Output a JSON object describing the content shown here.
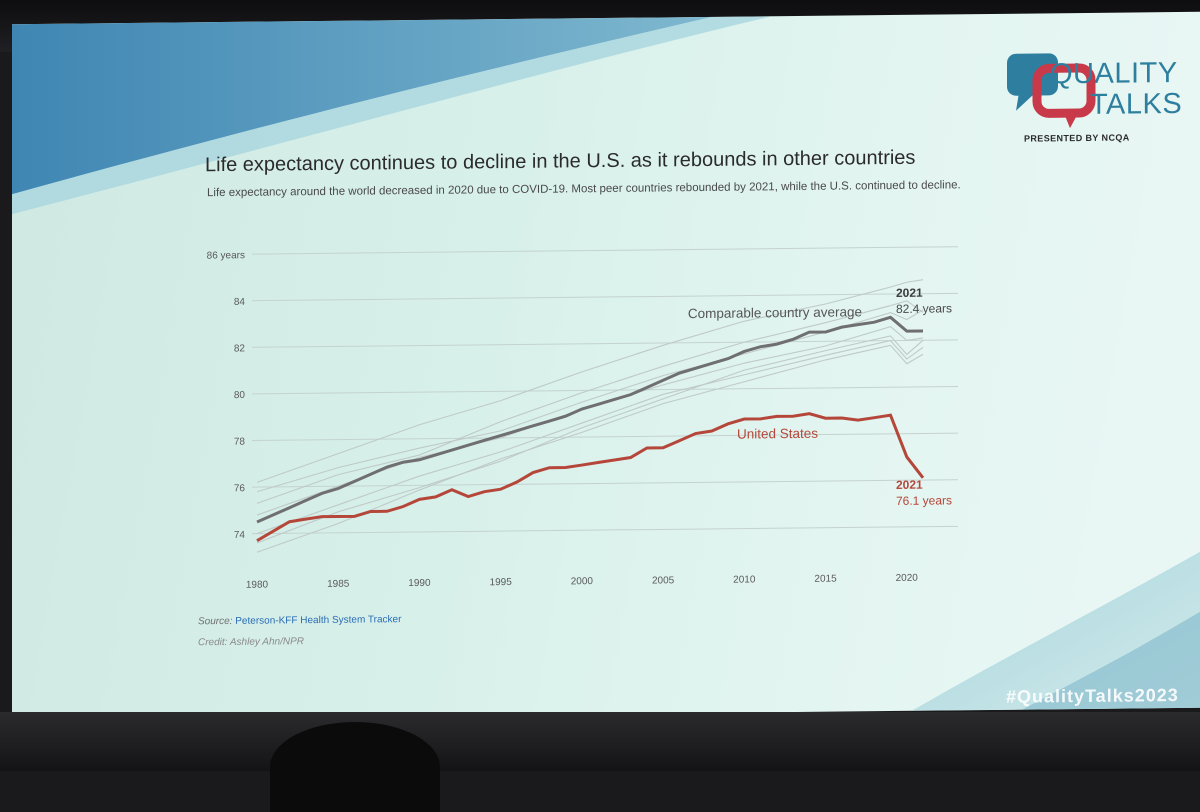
{
  "logo": {
    "line1": "QUALITY",
    "line2": "TALKS",
    "presented_by": "PRESENTED BY NCQA"
  },
  "slide": {
    "title": "Life expectancy continues to decline in the U.S. as it rebounds in other countries",
    "subtitle": "Life expectancy around the world decreased in 2020 due to COVID-19. Most peer countries rebounded by 2021, while the U.S. continued to decline.",
    "source_label": "Source:",
    "source_link": "Peterson-KFF Health System Tracker",
    "credit": "Credit: Ashley Ahn/NPR",
    "hashtag": "#QualityTalks2023"
  },
  "colors": {
    "us": "#b5473a",
    "comparable": "#6f6f6f",
    "peer": "#bfcac8",
    "grid": "#c4d3d0",
    "accent": "#2e7f9f"
  },
  "chart_data": {
    "type": "line",
    "title": "",
    "xlabel": "",
    "ylabel": "",
    "xlim": [
      1980,
      2021
    ],
    "ylim": [
      73,
      86
    ],
    "y_ticks": [
      74,
      76,
      78,
      80,
      82,
      84,
      86
    ],
    "y_tick_labels": [
      "74",
      "76",
      "78",
      "80",
      "82",
      "84",
      "86 years"
    ],
    "x_ticks": [
      1980,
      1985,
      1990,
      1995,
      2000,
      2005,
      2010,
      2015,
      2020
    ],
    "grid": true,
    "series": [
      {
        "name": "Comparable country average",
        "x": [
          1980,
          1981,
          1982,
          1983,
          1984,
          1985,
          1986,
          1987,
          1988,
          1989,
          1990,
          1991,
          1992,
          1993,
          1994,
          1995,
          1996,
          1997,
          1998,
          1999,
          2000,
          2001,
          2002,
          2003,
          2004,
          2005,
          2006,
          2007,
          2008,
          2009,
          2010,
          2011,
          2012,
          2013,
          2014,
          2015,
          2016,
          2017,
          2018,
          2019,
          2020,
          2021
        ],
        "y": [
          74.5,
          74.8,
          75.1,
          75.4,
          75.7,
          75.9,
          76.2,
          76.5,
          76.8,
          77.0,
          77.1,
          77.3,
          77.5,
          77.7,
          77.9,
          78.1,
          78.3,
          78.5,
          78.7,
          78.9,
          79.2,
          79.4,
          79.6,
          79.8,
          80.1,
          80.4,
          80.7,
          80.9,
          81.1,
          81.3,
          81.6,
          81.8,
          81.9,
          82.1,
          82.4,
          82.4,
          82.6,
          82.7,
          82.8,
          83.0,
          82.4,
          82.4
        ]
      },
      {
        "name": "United States",
        "x": [
          1980,
          1981,
          1982,
          1983,
          1984,
          1985,
          1986,
          1987,
          1988,
          1989,
          1990,
          1991,
          1992,
          1993,
          1994,
          1995,
          1996,
          1997,
          1998,
          1999,
          2000,
          2001,
          2002,
          2003,
          2004,
          2005,
          2006,
          2007,
          2008,
          2009,
          2010,
          2011,
          2012,
          2013,
          2014,
          2015,
          2016,
          2017,
          2018,
          2019,
          2020,
          2021
        ],
        "y": [
          73.7,
          74.1,
          74.5,
          74.6,
          74.7,
          74.7,
          74.7,
          74.9,
          74.9,
          75.1,
          75.4,
          75.5,
          75.8,
          75.5,
          75.7,
          75.8,
          76.1,
          76.5,
          76.7,
          76.7,
          76.8,
          76.9,
          77.0,
          77.1,
          77.5,
          77.5,
          77.8,
          78.1,
          78.2,
          78.5,
          78.7,
          78.7,
          78.8,
          78.8,
          78.9,
          78.7,
          78.7,
          78.6,
          78.7,
          78.8,
          77.0,
          76.1
        ]
      }
    ],
    "peer_countries": [
      {
        "x": [
          1980,
          1985,
          1990,
          1995,
          2000,
          2005,
          2010,
          2015,
          2019,
          2020,
          2021
        ],
        "y": [
          75.8,
          76.8,
          77.6,
          78.3,
          79.5,
          80.6,
          81.5,
          82.4,
          83.2,
          82.9,
          83.3
        ]
      },
      {
        "x": [
          1980,
          1985,
          1990,
          1995,
          2000,
          2005,
          2010,
          2015,
          2019,
          2020,
          2021
        ],
        "y": [
          76.2,
          77.4,
          78.6,
          79.6,
          80.8,
          81.9,
          82.9,
          83.6,
          84.3,
          84.5,
          84.6
        ]
      },
      {
        "x": [
          1980,
          1985,
          1990,
          1995,
          2000,
          2005,
          2010,
          2015,
          2019,
          2020,
          2021
        ],
        "y": [
          74.0,
          75.2,
          76.4,
          77.4,
          78.6,
          79.8,
          80.6,
          81.4,
          82.0,
          81.2,
          81.7
        ]
      },
      {
        "x": [
          1980,
          1985,
          1990,
          1995,
          2000,
          2005,
          2010,
          2015,
          2019,
          2020,
          2021
        ],
        "y": [
          73.2,
          74.4,
          75.8,
          77.1,
          78.2,
          79.4,
          80.3,
          81.2,
          81.8,
          81.0,
          81.4
        ]
      },
      {
        "x": [
          1980,
          1985,
          1990,
          1995,
          2000,
          2005,
          2010,
          2015,
          2019,
          2020,
          2021
        ],
        "y": [
          74.8,
          76.0,
          77.2,
          78.0,
          79.2,
          80.2,
          81.1,
          81.8,
          82.6,
          82.0,
          82.1
        ]
      },
      {
        "x": [
          1980,
          1985,
          1990,
          1995,
          2000,
          2005,
          2010,
          2015,
          2019,
          2020,
          2021
        ],
        "y": [
          75.3,
          76.5,
          77.3,
          78.7,
          79.9,
          81.0,
          82.0,
          82.8,
          83.5,
          83.7,
          83.2
        ]
      },
      {
        "x": [
          1980,
          1985,
          1990,
          1995,
          2000,
          2005,
          2010,
          2015,
          2019,
          2020,
          2021
        ],
        "y": [
          73.6,
          74.9,
          75.9,
          77.0,
          78.4,
          79.6,
          80.8,
          81.6,
          82.2,
          81.4,
          82.0
        ]
      }
    ],
    "annotations": [
      {
        "year_label": "2021",
        "value_label": "82.4 years",
        "series": "Comparable country average"
      },
      {
        "year_label": "2021",
        "value_label": "76.1 years",
        "series": "United States"
      }
    ]
  }
}
